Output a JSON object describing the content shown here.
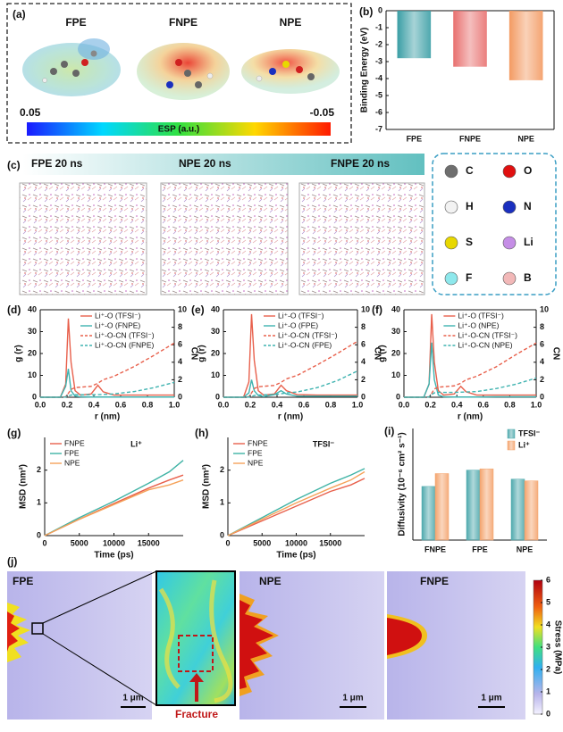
{
  "esp": {
    "label": "(a)",
    "molecules": [
      "FPE",
      "FNPE",
      "NPE"
    ],
    "colorbar": {
      "title": "ESP (a.u.)",
      "range": [
        0.05,
        -0.05
      ]
    }
  },
  "md": {
    "label": "(c)",
    "snapshots": [
      "FPE 20 ns",
      "NPE 20 ns",
      "FNPE 20 ns"
    ],
    "atoms": [
      {
        "symbol": "C",
        "color": "#6e6e6e"
      },
      {
        "symbol": "O",
        "color": "#e01010"
      },
      {
        "symbol": "H",
        "color": "#f2f2f2"
      },
      {
        "symbol": "N",
        "color": "#1a2fbf"
      },
      {
        "symbol": "S",
        "color": "#e8d800"
      },
      {
        "symbol": "Li",
        "color": "#c58ee6"
      },
      {
        "symbol": "F",
        "color": "#8ee8ec"
      },
      {
        "symbol": "B",
        "color": "#f2b8b8"
      }
    ]
  },
  "stress": {
    "label": "(j)",
    "maps": [
      {
        "name": "FPE",
        "scale_bar": "1 μm"
      },
      {
        "name": "NPE",
        "scale_bar": "1 μm"
      },
      {
        "name": "FNPE",
        "scale_bar": "1 μm"
      }
    ],
    "fracture": "Fracture",
    "colorbar": {
      "title": "Stress (MPa)",
      "lim": [
        0,
        6
      ],
      "ticks": [
        0,
        1,
        2,
        3,
        4,
        5,
        6
      ]
    }
  },
  "chart_data": [
    {
      "type": "bar",
      "label": "(b)",
      "ylabel": "Binding Energy (eV)",
      "categories": [
        "FPE",
        "FNPE",
        "NPE"
      ],
      "values": [
        -2.8,
        -3.3,
        -4.1
      ],
      "colors": [
        "#3a9ea5",
        "#e8706f",
        "#f39a62"
      ],
      "ylim": [
        -7,
        0
      ],
      "yticks": [
        0,
        -1,
        -2,
        -3,
        -4,
        -5,
        -6,
        -7
      ]
    },
    {
      "type": "line",
      "label": "(d)",
      "xlabel": "r (nm)",
      "ylabel": "g (r)",
      "y2label": "CN",
      "legend": "upper right",
      "x": [
        0,
        0.15,
        0.19,
        0.21,
        0.23,
        0.26,
        0.3,
        0.38,
        0.43,
        0.47,
        0.55,
        0.7,
        0.85,
        1.0
      ],
      "xlim": [
        0,
        1
      ],
      "xticks": [
        {
          "value": 0,
          "label": "0.0"
        },
        0.2,
        0.4,
        0.6,
        0.8,
        {
          "value": 1,
          "label": "1.0"
        }
      ],
      "ylim": [
        0,
        40
      ],
      "yticks": [
        0,
        10,
        20,
        30,
        40
      ],
      "y2lim": [
        0,
        10
      ],
      "y2ticks": [
        0,
        2,
        4,
        6,
        8,
        10
      ],
      "series": [
        {
          "name": "Li⁺-O (TFSI⁻)",
          "color": "#e8604c",
          "values": [
            0,
            0,
            6,
            36,
            16,
            3,
            1,
            1.5,
            5.5,
            2.5,
            1,
            1,
            1,
            1
          ]
        },
        {
          "name": "Li⁺-O (FNPE)",
          "color": "#3fb3b0",
          "values": [
            0,
            0,
            5,
            13,
            3,
            0.5,
            0.2,
            0.1,
            0.1,
            0.1,
            0.1,
            0.1,
            0.1,
            0.1
          ]
        },
        {
          "name": "Li⁺-O-CN (TFSI⁻)",
          "color": "#e8604c",
          "dash": true,
          "axis": "y2",
          "values": [
            0,
            0,
            0.05,
            0.45,
            0.9,
            1.1,
            1.15,
            1.25,
            1.6,
            2.0,
            2.4,
            3.5,
            4.8,
            6.2
          ]
        },
        {
          "name": "Li⁺-O-CN (FNPE)",
          "color": "#3fb3b0",
          "dash": true,
          "axis": "y2",
          "values": [
            0,
            0,
            0.03,
            0.15,
            0.25,
            0.28,
            0.28,
            0.29,
            0.3,
            0.32,
            0.38,
            0.65,
            1.1,
            1.7
          ]
        }
      ]
    },
    {
      "type": "line",
      "label": "(e)",
      "xlabel": "r (nm)",
      "ylabel": "g (r)",
      "y2label": "CN",
      "legend": "upper right",
      "x": [
        0,
        0.15,
        0.19,
        0.21,
        0.23,
        0.26,
        0.3,
        0.38,
        0.43,
        0.47,
        0.55,
        0.7,
        0.85,
        1.0
      ],
      "xlim": [
        0,
        1
      ],
      "xticks": [
        {
          "value": 0,
          "label": "0.0"
        },
        0.2,
        0.4,
        0.6,
        0.8,
        {
          "value": 1,
          "label": "1.0"
        }
      ],
      "ylim": [
        0,
        40
      ],
      "yticks": [
        0,
        10,
        20,
        30,
        40
      ],
      "y2lim": [
        0,
        10
      ],
      "y2ticks": [
        0,
        2,
        4,
        6,
        8,
        10
      ],
      "series": [
        {
          "name": "Li⁺-O (TFSI⁻)",
          "color": "#e8604c",
          "values": [
            0,
            0,
            7,
            38,
            17,
            3,
            1,
            1.5,
            5.5,
            3,
            1.2,
            1,
            1,
            1
          ]
        },
        {
          "name": "Li⁺-O (FPE)",
          "color": "#3fb3b0",
          "values": [
            0,
            0,
            2,
            8,
            3,
            0.8,
            0.3,
            1.2,
            3,
            1.5,
            0.5,
            0.5,
            0.5,
            0.5
          ]
        },
        {
          "name": "Li⁺-O-CN (TFSI⁻)",
          "color": "#e8604c",
          "dash": true,
          "axis": "y2",
          "values": [
            0,
            0,
            0.05,
            0.5,
            1.0,
            1.2,
            1.25,
            1.35,
            1.7,
            2.1,
            2.5,
            3.7,
            5.0,
            6.4
          ]
        },
        {
          "name": "Li⁺-O-CN (FPE)",
          "color": "#3fb3b0",
          "dash": true,
          "axis": "y2",
          "values": [
            0,
            0,
            0.02,
            0.1,
            0.2,
            0.25,
            0.27,
            0.3,
            0.4,
            0.5,
            0.6,
            1.1,
            1.9,
            3.0
          ]
        }
      ]
    },
    {
      "type": "line",
      "label": "(f)",
      "xlabel": "r (nm)",
      "ylabel": "g (r)",
      "y2label": "CN",
      "legend": "upper right",
      "x": [
        0,
        0.15,
        0.19,
        0.21,
        0.23,
        0.26,
        0.3,
        0.38,
        0.43,
        0.47,
        0.55,
        0.7,
        0.85,
        1.0
      ],
      "xlim": [
        0,
        1
      ],
      "xticks": [
        {
          "value": 0,
          "label": "0.0"
        },
        0.2,
        0.4,
        0.6,
        0.8,
        {
          "value": 1,
          "label": "1.0"
        }
      ],
      "ylim": [
        0,
        40
      ],
      "yticks": [
        0,
        10,
        20,
        30,
        40
      ],
      "y2lim": [
        0,
        10
      ],
      "y2ticks": [
        0,
        2,
        4,
        6,
        8,
        10
      ],
      "series": [
        {
          "name": "Li⁺-O (TFSI⁻)",
          "color": "#e8604c",
          "values": [
            0,
            0,
            6,
            38,
            16,
            3,
            1,
            1.5,
            5,
            2.5,
            1,
            1,
            1,
            1
          ]
        },
        {
          "name": "Li⁺-O (NPE)",
          "color": "#3fb3b0",
          "values": [
            0,
            0,
            6,
            25,
            8,
            1,
            0.2,
            0.1,
            0.1,
            0.1,
            0.1,
            0.2,
            0.2,
            0.2
          ]
        },
        {
          "name": "Li⁺-O-CN (TFSI⁻)",
          "color": "#e8604c",
          "dash": true,
          "axis": "y2",
          "values": [
            0,
            0,
            0.05,
            0.45,
            0.95,
            1.15,
            1.2,
            1.3,
            1.6,
            2.0,
            2.4,
            3.5,
            4.9,
            6.2
          ]
        },
        {
          "name": "Li⁺-O-CN (NPE)",
          "color": "#3fb3b0",
          "dash": true,
          "axis": "y2",
          "values": [
            0,
            0,
            0.04,
            0.3,
            0.5,
            0.55,
            0.55,
            0.56,
            0.58,
            0.6,
            0.65,
            1.0,
            1.5,
            2.2
          ]
        }
      ]
    },
    {
      "type": "line",
      "label": "(g)",
      "xlabel": "Time (ps)",
      "ylabel": "MSD (nm²)",
      "annotation": "Li⁺",
      "legend": "upper left",
      "x": [
        0,
        5000,
        10000,
        15000,
        18000,
        20000
      ],
      "xlim": [
        0,
        20000
      ],
      "xticks": [
        0,
        5000,
        10000,
        15000
      ],
      "ylim": [
        0,
        3
      ],
      "yticks": [
        0,
        1,
        2
      ],
      "series": [
        {
          "name": "FNPE",
          "color": "#e8604c",
          "values": [
            0,
            0.5,
            0.98,
            1.45,
            1.7,
            1.85
          ]
        },
        {
          "name": "FPE",
          "color": "#3fb3a5",
          "values": [
            0,
            0.55,
            1.05,
            1.6,
            1.95,
            2.3
          ]
        },
        {
          "name": "NPE",
          "color": "#f5a25a",
          "values": [
            0,
            0.5,
            0.95,
            1.4,
            1.55,
            1.7
          ]
        }
      ]
    },
    {
      "type": "line",
      "label": "(h)",
      "xlabel": "Time (ps)",
      "ylabel": "MSD (nm²)",
      "annotation": "TFSI⁻",
      "legend": "upper left",
      "x": [
        0,
        5000,
        10000,
        15000,
        18000,
        20000
      ],
      "xlim": [
        0,
        20000
      ],
      "xticks": [
        0,
        5000,
        10000,
        15000
      ],
      "ylim": [
        0,
        3
      ],
      "yticks": [
        0,
        1,
        2
      ],
      "series": [
        {
          "name": "FNPE",
          "color": "#e8604c",
          "values": [
            0,
            0.45,
            0.9,
            1.35,
            1.55,
            1.75
          ]
        },
        {
          "name": "FPE",
          "color": "#3fb3a5",
          "values": [
            0,
            0.55,
            1.1,
            1.6,
            1.85,
            2.05
          ]
        },
        {
          "name": "NPE",
          "color": "#f5a25a",
          "values": [
            0,
            0.5,
            1.0,
            1.45,
            1.7,
            1.95
          ]
        }
      ]
    },
    {
      "type": "bar",
      "label": "(i)",
      "ylabel": "Diffusivity (10⁻⁶ cm² s⁻¹)",
      "legend": "upper right",
      "categories": [
        "FNPE",
        "FPE",
        "NPE"
      ],
      "ylim": [
        0,
        2.6
      ],
      "series": [
        {
          "name": "TFSI⁻",
          "color": "#4fa9ad",
          "values": [
            1.25,
            1.63,
            1.42
          ]
        },
        {
          "name": "Li⁺",
          "color": "#f4a46e",
          "values": [
            1.55,
            1.66,
            1.38
          ]
        }
      ]
    }
  ]
}
